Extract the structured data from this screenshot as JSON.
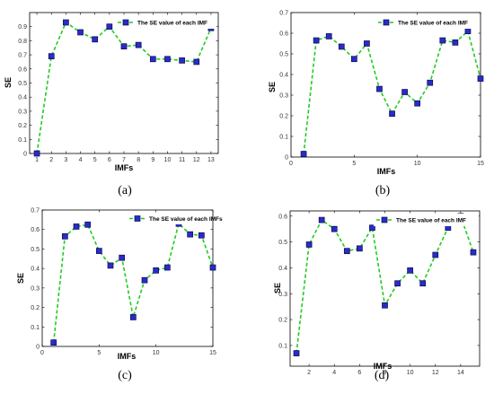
{
  "colors": {
    "line": "#22cc22",
    "marker_fill": "#2b2bc8",
    "marker_edge": "#0b0b55",
    "axis": "#000000",
    "legend_bg": "#ffffff"
  },
  "chart_data": [
    {
      "type": "line",
      "panel": "(a)",
      "xlabel": "IMFs",
      "ylabel": "SE",
      "legend": "The SE value of each IMF",
      "legend_position": "top-right",
      "grid": false,
      "xlim": [
        0.5,
        13.5
      ],
      "ylim": [
        0,
        1
      ],
      "xticks": [
        1,
        2,
        3,
        4,
        5,
        6,
        7,
        8,
        9,
        10,
        11,
        12,
        13
      ],
      "yticks": [
        0,
        0.1,
        0.2,
        0.3,
        0.4,
        0.5,
        0.6,
        0.7,
        0.8,
        0.9
      ],
      "series": [
        {
          "name": "The SE value of each IMF",
          "x": [
            1,
            2,
            3,
            4,
            5,
            6,
            7,
            8,
            9,
            10,
            11,
            12,
            13
          ],
          "y": [
            0.0,
            0.69,
            0.93,
            0.86,
            0.81,
            0.9,
            0.76,
            0.77,
            0.67,
            0.67,
            0.66,
            0.65,
            0.89
          ]
        }
      ]
    },
    {
      "type": "line",
      "panel": "(b)",
      "xlabel": "IMFs",
      "ylabel": "SE",
      "legend": "The SE value of each IMF",
      "legend_position": "top-right",
      "grid": false,
      "xlim": [
        0,
        15
      ],
      "ylim": [
        0,
        0.7
      ],
      "xticks": [
        0,
        5,
        10,
        15
      ],
      "yticks": [
        0,
        0.1,
        0.2,
        0.3,
        0.4,
        0.5,
        0.6,
        0.7
      ],
      "series": [
        {
          "name": "The SE value of each IMF",
          "x": [
            1,
            2,
            3,
            4,
            5,
            6,
            7,
            8,
            9,
            10,
            11,
            12,
            13,
            14,
            15
          ],
          "y": [
            0.015,
            0.565,
            0.585,
            0.535,
            0.475,
            0.55,
            0.33,
            0.21,
            0.315,
            0.26,
            0.36,
            0.565,
            0.555,
            0.61,
            0.38
          ]
        }
      ]
    },
    {
      "type": "line",
      "panel": "(c)",
      "xlabel": "IMFs",
      "ylabel": "SE",
      "legend": "The SE value of each IMFs",
      "legend_position": "top-right",
      "grid": false,
      "xlim": [
        0,
        15
      ],
      "ylim": [
        0,
        0.7
      ],
      "xticks": [
        0,
        5,
        10,
        15
      ],
      "yticks": [
        0,
        0.1,
        0.2,
        0.3,
        0.4,
        0.5,
        0.6,
        0.7
      ],
      "series": [
        {
          "name": "The SE value of each IMFs",
          "x": [
            1,
            2,
            3,
            4,
            5,
            6,
            7,
            8,
            9,
            10,
            11,
            12,
            13,
            14,
            15
          ],
          "y": [
            0.02,
            0.565,
            0.615,
            0.625,
            0.49,
            0.415,
            0.455,
            0.15,
            0.34,
            0.39,
            0.405,
            0.63,
            0.575,
            0.57,
            0.405
          ]
        }
      ]
    },
    {
      "type": "line",
      "panel": "(d)",
      "xlabel": "IMFs",
      "ylabel": "SE",
      "legend": "The SE value of each IMF",
      "legend_position": "top-right",
      "grid": false,
      "xlim": [
        0.5,
        15.5
      ],
      "ylim": [
        0.02,
        0.62
      ],
      "xticks": [
        2,
        4,
        6,
        8,
        10,
        12,
        14
      ],
      "yticks": [
        0.1,
        0.2,
        0.3,
        0.4,
        0.5,
        0.6
      ],
      "series": [
        {
          "name": "The SE value of each IMF",
          "x": [
            1,
            2,
            3,
            4,
            5,
            6,
            7,
            8,
            9,
            10,
            11,
            12,
            13,
            14,
            15
          ],
          "y": [
            0.07,
            0.49,
            0.585,
            0.55,
            0.465,
            0.475,
            0.555,
            0.255,
            0.34,
            0.39,
            0.34,
            0.45,
            0.555,
            0.6,
            0.46
          ]
        }
      ]
    }
  ]
}
